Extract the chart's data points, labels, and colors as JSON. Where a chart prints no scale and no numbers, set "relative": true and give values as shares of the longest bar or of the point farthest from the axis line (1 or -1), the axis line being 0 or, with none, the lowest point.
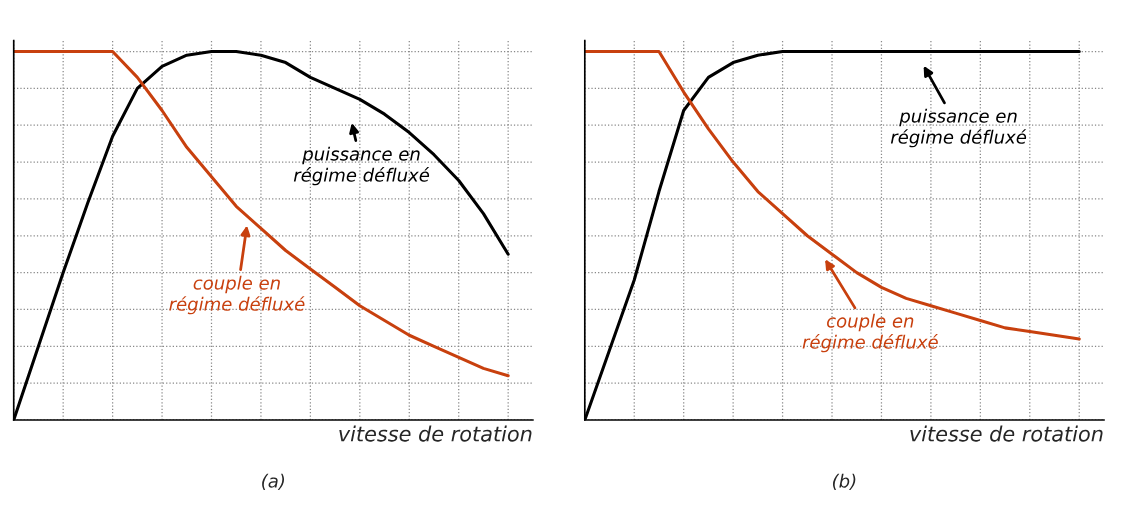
{
  "chart_data": [
    {
      "type": "line",
      "title": "(a)",
      "xlabel": "vitesse de rotation",
      "relative": true,
      "grid": true,
      "tick_labels": false,
      "legend": false,
      "categories": [
        null,
        null,
        null,
        null,
        null,
        null,
        null,
        null,
        null,
        null,
        null,
        null,
        null,
        null,
        null,
        null,
        null,
        null,
        null,
        null,
        null
      ],
      "series": [
        {
          "color": "#000000",
          "values": [
            0,
            0.2,
            0.4,
            0.59,
            0.77,
            0.9,
            0.96,
            0.99,
            1.0,
            1.0,
            0.99,
            0.97,
            0.93,
            0.9,
            0.87,
            0.83,
            0.78,
            0.72,
            0.65,
            0.56,
            0.45
          ]
        },
        {
          "color": "#c8400e",
          "values": [
            1.0,
            1.0,
            1.0,
            1.0,
            1.0,
            0.93,
            0.84,
            0.74,
            0.66,
            0.58,
            0.52,
            0.46,
            0.41,
            0.36,
            0.31,
            0.27,
            0.23,
            0.2,
            0.17,
            0.14,
            0.12
          ]
        }
      ],
      "annotations": [
        "puissance en\nrégime défluxé",
        "couple en\nrégime défluxé"
      ]
    },
    {
      "type": "line",
      "title": "(b)",
      "xlabel": "vitesse de rotation",
      "relative": true,
      "grid": true,
      "tick_labels": false,
      "legend": false,
      "categories": [
        null,
        null,
        null,
        null,
        null,
        null,
        null,
        null,
        null,
        null,
        null,
        null,
        null,
        null,
        null,
        null,
        null,
        null,
        null,
        null,
        null
      ],
      "series": [
        {
          "color": "#000000",
          "values": [
            0,
            0.19,
            0.38,
            0.62,
            0.84,
            0.93,
            0.97,
            0.99,
            1.0,
            1.0,
            1.0,
            1.0,
            1.0,
            1.0,
            1.0,
            1.0,
            1.0,
            1.0,
            1.0,
            1.0,
            1.0
          ]
        },
        {
          "color": "#c8400e",
          "values": [
            1.0,
            1.0,
            1.0,
            1.0,
            0.89,
            0.79,
            0.7,
            0.62,
            0.56,
            0.5,
            0.45,
            0.4,
            0.36,
            0.33,
            0.31,
            0.29,
            0.27,
            0.25,
            0.24,
            0.23,
            0.22
          ]
        }
      ],
      "annotations": [
        "puissance en\nrégime défluxé",
        "couple en\nrégime défluxé"
      ]
    }
  ]
}
